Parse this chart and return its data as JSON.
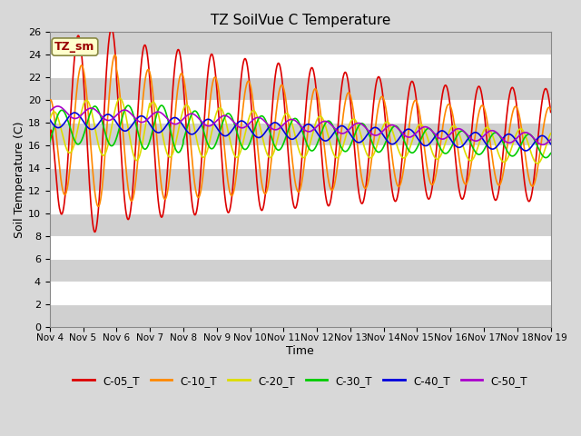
{
  "title": "TZ SoilVue C Temperature",
  "xlabel": "Time",
  "ylabel": "Soil Temperature (C)",
  "annotation": "TZ_sm",
  "ylim": [
    0,
    26
  ],
  "yticks": [
    0,
    2,
    4,
    6,
    8,
    10,
    12,
    14,
    16,
    18,
    20,
    22,
    24,
    26
  ],
  "xtick_labels": [
    "Nov 4",
    "Nov 5",
    "Nov 6",
    "Nov 7",
    "Nov 8",
    "Nov 9",
    "Nov 10",
    "Nov 11",
    "Nov 12",
    "Nov 13",
    "Nov 14",
    "Nov 15",
    "Nov 16",
    "Nov 17",
    "Nov 18",
    "Nov 19"
  ],
  "series": {
    "C-05_T": {
      "color": "#dd0000",
      "linewidth": 1.2
    },
    "C-10_T": {
      "color": "#ff8800",
      "linewidth": 1.2
    },
    "C-20_T": {
      "color": "#dddd00",
      "linewidth": 1.2
    },
    "C-30_T": {
      "color": "#00cc00",
      "linewidth": 1.2
    },
    "C-40_T": {
      "color": "#0000dd",
      "linewidth": 1.2
    },
    "C-50_T": {
      "color": "#aa00cc",
      "linewidth": 1.2
    }
  },
  "bg_light": "#dcdcdc",
  "bg_dark": "#c8c8c8",
  "grid_color": "#ffffff",
  "title_fontsize": 11,
  "figsize": [
    6.4,
    4.8
  ],
  "dpi": 100
}
